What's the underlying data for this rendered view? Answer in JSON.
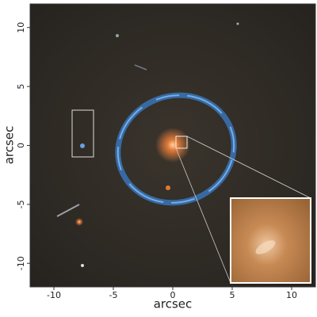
{
  "chart_data": {
    "type": "image",
    "xlabel": "arcsec",
    "ylabel": "arcsec",
    "xlim": [
      -12,
      12
    ],
    "ylim": [
      -12,
      12
    ],
    "xticks": [
      -10,
      -5,
      0,
      5,
      10
    ],
    "yticks": [
      -10,
      -5,
      0,
      5,
      10
    ]
  }
}
